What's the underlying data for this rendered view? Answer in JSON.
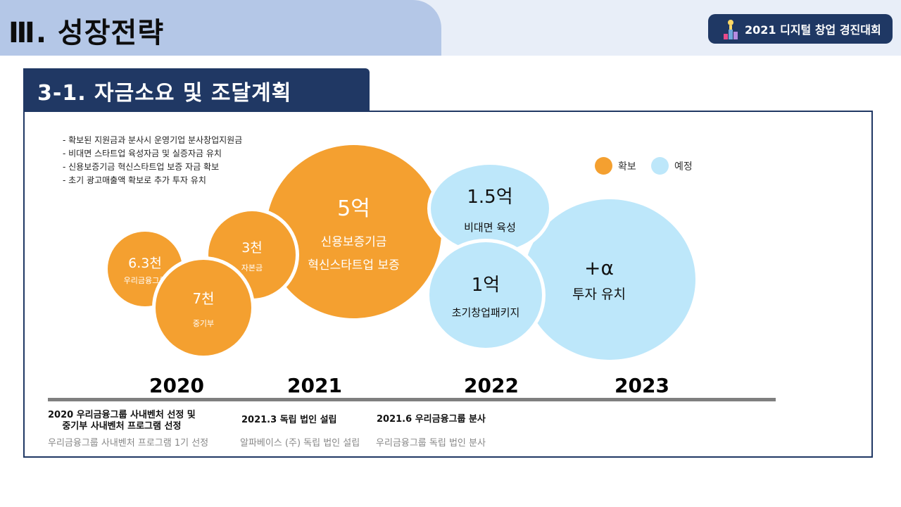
{
  "header": {
    "title": "Ⅲ. 성장전략",
    "event_badge": "2021 디지털 창업 경진대회"
  },
  "section": {
    "title": "3-1. 자금소요 및 조달계획"
  },
  "bullets": [
    "- 확보된 지원금과 분사시 운영기업 분사창업지원금",
    "- 비대면 스타트업 육성자금 및 실증자금 유치",
    "- 신용보증기금 혁신스타트업 보증 자금 확보",
    "- 초기 광고매출액 확보로 추가 투자 유치"
  ],
  "legend": {
    "secured_label": "확보",
    "planned_label": "예정",
    "secured_color": "#f4a030",
    "planned_color": "#bde7fa"
  },
  "bubbles": {
    "woori": {
      "amount": "6.3천",
      "desc": "우리금융그룹"
    },
    "ministry": {
      "amount": "7천",
      "desc": "중기부"
    },
    "capital": {
      "amount": "3천",
      "desc": "자본금"
    },
    "kodit": {
      "amount": "5억",
      "desc1": "신용보증기금",
      "desc2": "혁신스타트업 보증"
    },
    "untact": {
      "amount": "1.5억",
      "desc": "비대면 육성"
    },
    "package": {
      "amount": "1억",
      "desc": "초기창업패키지"
    },
    "investment": {
      "amount": "+α",
      "desc": "투자 유치"
    }
  },
  "years": [
    "2020",
    "2021",
    "2022",
    "2023"
  ],
  "milestones": {
    "m2020_line1": "2020 우리금융그룹 사내벤처 선정 및",
    "m2020_line2": "중기부 사내벤처 프로그램 선정",
    "m2020_sub": "우리금융그룹 사내벤처 프로그램 1기 선정",
    "m2021_title": "2021.3 독립 법인 설립",
    "m2021_sub": "알파베이스 (주) 독립 법인 설립",
    "m2021b_title": "2021.6 우리금융그룹 분사",
    "m2021b_sub": "우리금융그룹 독립 법인 분사"
  }
}
